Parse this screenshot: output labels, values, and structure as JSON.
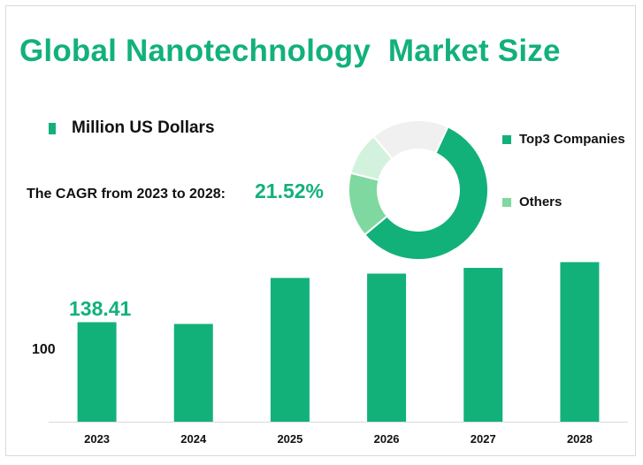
{
  "title": "Global Nanotechnology  Market Size",
  "unit_label": "Million US Dollars",
  "cagr": {
    "label": "The CAGR from 2023 to 2028:",
    "value": "21.52%"
  },
  "colors": {
    "accent": "#12b17a",
    "light_green": "#7fd89f",
    "pale_green": "#d3f2dd",
    "grey": "#f0f0f0"
  },
  "legend": [
    {
      "label": "Top3 Companies",
      "color": "#12b17a"
    },
    {
      "label": "Others",
      "color": "#7fd89f"
    }
  ],
  "chart_data": [
    {
      "type": "bar",
      "categories": [
        "2023",
        "2024",
        "2025",
        "2026",
        "2027",
        "2028"
      ],
      "values": [
        138.41,
        136,
        200,
        206,
        214,
        222
      ],
      "data_labels": [
        "138.41",
        "",
        "",
        "",
        "",
        ""
      ],
      "yticks": [
        "100"
      ],
      "ylim": [
        0,
        230
      ],
      "grid": false,
      "color": "#12b17a"
    },
    {
      "type": "pie",
      "donut": true,
      "slices": [
        {
          "label": "Top3 Companies",
          "value": 57,
          "color": "#12b17a"
        },
        {
          "label": "Others",
          "value": 15,
          "color": "#7fd89f"
        },
        {
          "label": "",
          "value": 10,
          "color": "#d3f2dd"
        },
        {
          "label": "",
          "value": 18,
          "color": "#f0f0f0"
        }
      ]
    }
  ]
}
